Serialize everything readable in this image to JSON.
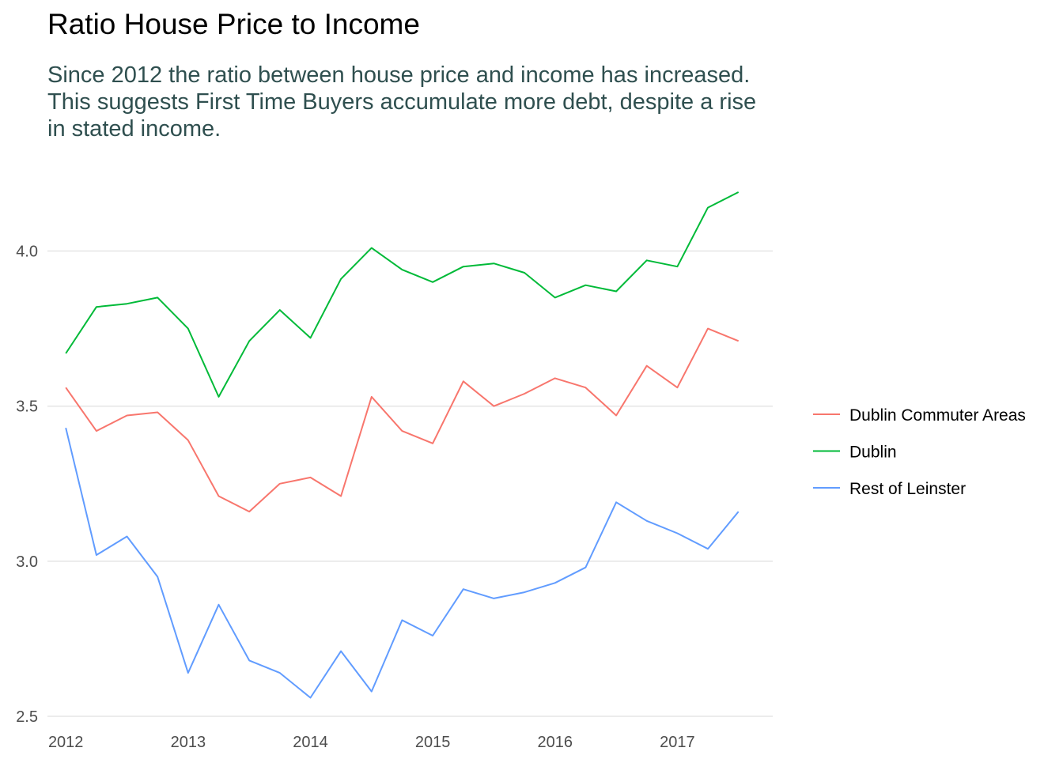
{
  "chart_data": {
    "type": "line",
    "title": "Ratio House Price to Income",
    "subtitle_lines": [
      "Since 2012 the ratio between house price and income has increased.",
      "This suggests First Time Buyers accumulate more debt, despite a rise",
      "in stated income."
    ],
    "xlabel": "",
    "ylabel": "",
    "x": [
      2012.0,
      2012.25,
      2012.5,
      2012.75,
      2013.0,
      2013.25,
      2013.5,
      2013.75,
      2014.0,
      2014.25,
      2014.5,
      2014.75,
      2015.0,
      2015.25,
      2015.5,
      2015.75,
      2016.0,
      2016.25,
      2016.5,
      2016.75,
      2017.0,
      2017.25,
      2017.5
    ],
    "x_ticks": [
      2012,
      2013,
      2014,
      2015,
      2016,
      2017
    ],
    "x_tick_labels": [
      "2012",
      "2013",
      "2014",
      "2015",
      "2016",
      "2017"
    ],
    "xlim": [
      2011.85,
      2017.78
    ],
    "y_ticks": [
      2.5,
      3.0,
      3.5,
      4.0
    ],
    "y_tick_labels": [
      "2.5",
      "3.0",
      "3.5",
      "4.0"
    ],
    "ylim": [
      2.5,
      4.19
    ],
    "grid": true,
    "legend_position": "right",
    "series": [
      {
        "name": "Dublin Commuter Areas",
        "color": "#F8766D",
        "values": [
          3.56,
          3.42,
          3.47,
          3.48,
          3.39,
          3.21,
          3.16,
          3.25,
          3.27,
          3.21,
          3.53,
          3.42,
          3.38,
          3.58,
          3.5,
          3.54,
          3.59,
          3.56,
          3.47,
          3.63,
          3.56,
          3.75,
          3.71
        ]
      },
      {
        "name": "Dublin",
        "color": "#00BA38",
        "values": [
          3.67,
          3.82,
          3.83,
          3.85,
          3.75,
          3.53,
          3.71,
          3.81,
          3.72,
          3.91,
          4.01,
          3.94,
          3.9,
          3.95,
          3.96,
          3.93,
          3.85,
          3.89,
          3.87,
          3.97,
          3.95,
          4.14,
          4.19
        ]
      },
      {
        "name": "Rest of Leinster",
        "color": "#619CFF",
        "values": [
          3.43,
          3.02,
          3.08,
          2.95,
          2.64,
          2.86,
          2.68,
          2.64,
          2.56,
          2.71,
          2.58,
          2.81,
          2.76,
          2.91,
          2.88,
          2.9,
          2.93,
          2.98,
          3.19,
          3.13,
          3.09,
          3.04,
          3.16
        ]
      }
    ]
  }
}
